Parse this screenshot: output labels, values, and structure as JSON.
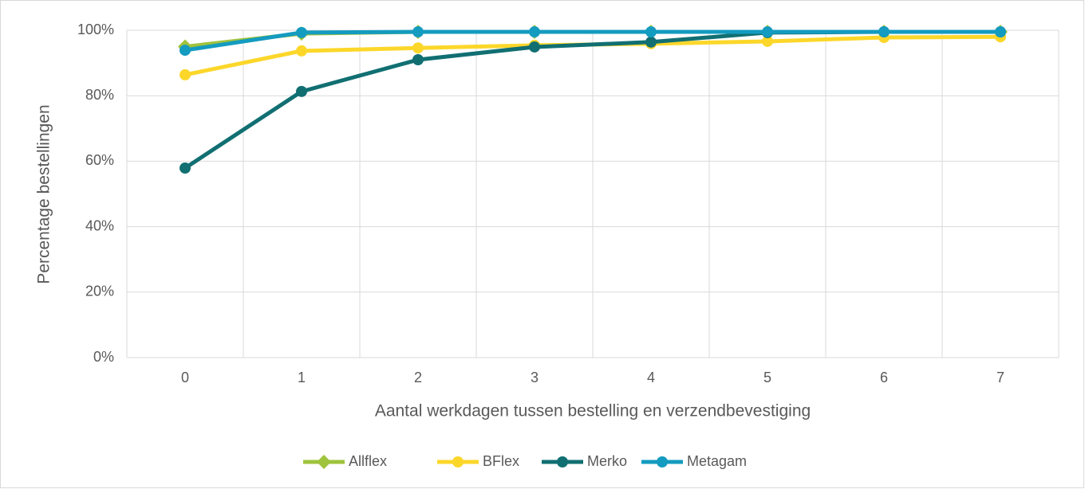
{
  "chart_data": {
    "type": "line",
    "x_label": "Aantal werkdagen tussen bestelling en verzendbevestiging",
    "y_label": "Percentage bestellingen",
    "categories": [
      "0",
      "1",
      "2",
      "3",
      "4",
      "5",
      "6",
      "7"
    ],
    "series": [
      {
        "name": "Allflex",
        "color": "#9fc33c",
        "marker": "diamond",
        "values": [
          95,
          99,
          99.5,
          99.5,
          99.5,
          99.5,
          99.5,
          99.5
        ]
      },
      {
        "name": "BFlex",
        "color": "#fcd72a",
        "marker": "circle",
        "values": [
          86.4,
          93.7,
          94.6,
          95.4,
          95.9,
          96.6,
          97.8,
          98
        ]
      },
      {
        "name": "Merko",
        "color": "#116f72",
        "marker": "circle",
        "values": [
          57.9,
          81.3,
          91,
          94.9,
          96.4,
          99.3,
          99.5,
          99.5
        ]
      },
      {
        "name": "Metagam",
        "color": "#149bc0",
        "marker": "circle",
        "values": [
          93.9,
          99.3,
          99.5,
          99.5,
          99.5,
          99.5,
          99.5,
          99.5
        ]
      }
    ],
    "ylim": [
      0,
      100
    ],
    "yticks": [
      {
        "value": 0,
        "label": "0%"
      },
      {
        "value": 20,
        "label": "20%"
      },
      {
        "value": 40,
        "label": "40%"
      },
      {
        "value": 60,
        "label": "60%"
      },
      {
        "value": 80,
        "label": "80%"
      },
      {
        "value": 100,
        "label": "100%"
      }
    ],
    "grid": true,
    "legend": "bottom"
  }
}
